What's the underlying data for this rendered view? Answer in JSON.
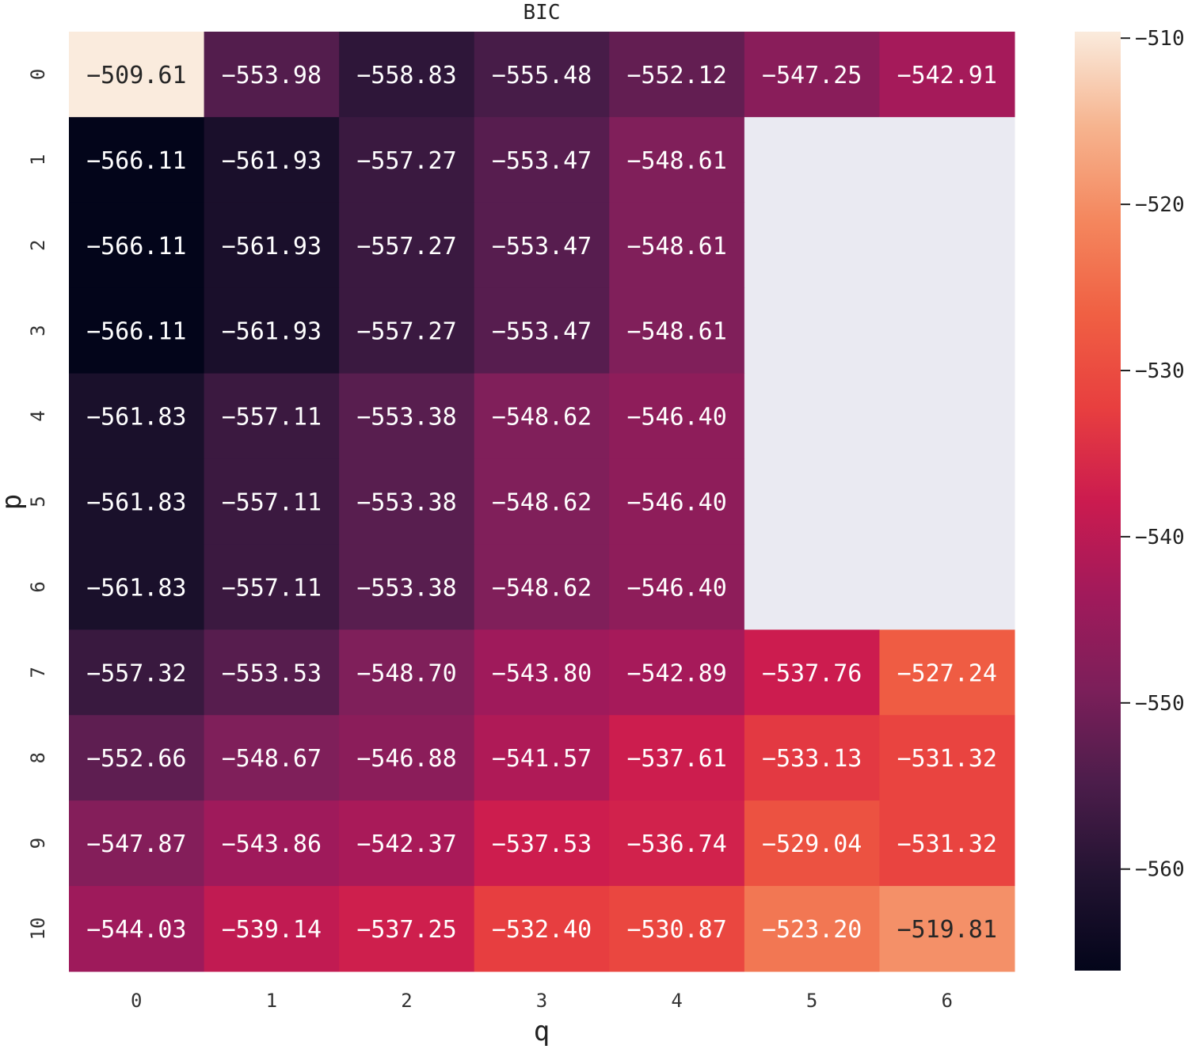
{
  "chart_data": {
    "type": "heatmap",
    "title": "BIC",
    "xlabel": "q",
    "ylabel": "p",
    "x_categories": [
      "0",
      "1",
      "2",
      "3",
      "4",
      "5",
      "6"
    ],
    "y_categories": [
      "0",
      "1",
      "2",
      "3",
      "4",
      "5",
      "6",
      "7",
      "8",
      "9",
      "10"
    ],
    "values": [
      [
        -509.61,
        -553.98,
        -558.83,
        -555.48,
        -552.12,
        -547.25,
        -542.91
      ],
      [
        -566.11,
        -561.93,
        -557.27,
        -553.47,
        -548.61,
        null,
        null
      ],
      [
        -566.11,
        -561.93,
        -557.27,
        -553.47,
        -548.61,
        null,
        null
      ],
      [
        -566.11,
        -561.93,
        -557.27,
        -553.47,
        -548.61,
        null,
        null
      ],
      [
        -561.83,
        -557.11,
        -553.38,
        -548.62,
        -546.4,
        null,
        null
      ],
      [
        -561.83,
        -557.11,
        -553.38,
        -548.62,
        -546.4,
        null,
        null
      ],
      [
        -561.83,
        -557.11,
        -553.38,
        -548.62,
        -546.4,
        null,
        null
      ],
      [
        -557.32,
        -553.53,
        -548.7,
        -543.8,
        -542.89,
        -537.76,
        -527.24
      ],
      [
        -552.66,
        -548.67,
        -546.88,
        -541.57,
        -537.61,
        -533.13,
        -531.32
      ],
      [
        -547.87,
        -543.86,
        -542.37,
        -537.53,
        -536.74,
        -529.04,
        -531.32
      ],
      [
        -544.03,
        -539.14,
        -537.25,
        -532.4,
        -530.87,
        -523.2,
        -519.81
      ]
    ],
    "cell_labels": [
      [
        "−509.61",
        "−553.98",
        "−558.83",
        "−555.48",
        "−552.12",
        "−547.25",
        "−542.91"
      ],
      [
        "−566.11",
        "−561.93",
        "−557.27",
        "−553.47",
        "−548.61",
        "",
        ""
      ],
      [
        "−566.11",
        "−561.93",
        "−557.27",
        "−553.47",
        "−548.61",
        "",
        ""
      ],
      [
        "−566.11",
        "−561.93",
        "−557.27",
        "−553.47",
        "−548.61",
        "",
        ""
      ],
      [
        "−561.83",
        "−557.11",
        "−553.38",
        "−548.62",
        "−546.40",
        "",
        ""
      ],
      [
        "−561.83",
        "−557.11",
        "−553.38",
        "−548.62",
        "−546.40",
        "",
        ""
      ],
      [
        "−561.83",
        "−557.11",
        "−553.38",
        "−548.62",
        "−546.40",
        "",
        ""
      ],
      [
        "−557.32",
        "−553.53",
        "−548.70",
        "−543.80",
        "−542.89",
        "−537.76",
        "−527.24"
      ],
      [
        "−552.66",
        "−548.67",
        "−546.88",
        "−541.57",
        "−537.61",
        "−533.13",
        "−531.32"
      ],
      [
        "−547.87",
        "−543.86",
        "−542.37",
        "−537.53",
        "−536.74",
        "−529.04",
        "−531.32"
      ],
      [
        "−544.03",
        "−539.14",
        "−537.25",
        "−532.40",
        "−530.87",
        "−523.20",
        "−519.81"
      ]
    ],
    "colorbar": {
      "range": [
        -566.11,
        -509.61
      ],
      "ticks": [
        -510,
        -520,
        -530,
        -540,
        -550,
        -560
      ],
      "tick_labels": [
        "−510",
        "−520",
        "−530",
        "−540",
        "−550",
        "−560"
      ]
    },
    "colormap": "rocket",
    "colormap_stops": [
      "#03051a",
      "#221331",
      "#4c1d4b",
      "#7c1f5a",
      "#a11a5b",
      "#cb1b4f",
      "#e83f3f",
      "#f06043",
      "#f4875e",
      "#f6b48f",
      "#faebdd"
    ],
    "missing_color": "#eaeaf2",
    "grid": false
  }
}
